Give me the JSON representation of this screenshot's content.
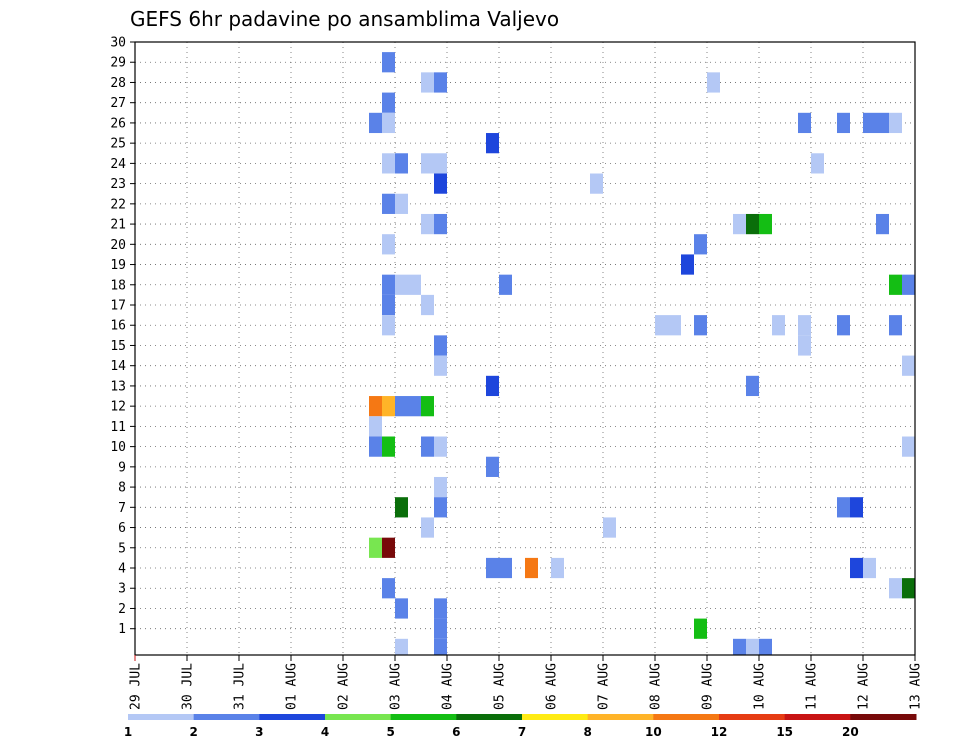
{
  "chart_data": {
    "type": "heatmap",
    "title": "GEFS 6hr padavine po ansamblima Valjevo",
    "x_tick_labels": [
      "29 JUL",
      "30 JUL",
      "31 JUL",
      "01 AUG",
      "02 AUG",
      "03 AUG",
      "04 AUG",
      "05 AUG",
      "06 AUG",
      "07 AUG",
      "08 AUG",
      "09 AUG",
      "10 AUG",
      "11 AUG",
      "12 AUG",
      "13 AUG"
    ],
    "y_tick_labels": [
      "1",
      "2",
      "3",
      "4",
      "5",
      "6",
      "7",
      "8",
      "9",
      "10",
      "11",
      "12",
      "13",
      "14",
      "15",
      "16",
      "17",
      "18",
      "19",
      "20",
      "21",
      "22",
      "23",
      "24",
      "25",
      "26",
      "27",
      "28",
      "29",
      "30"
    ],
    "x_range_days": [
      0,
      15
    ],
    "y_range": [
      0,
      30
    ],
    "x_unit": "days since 29 JUL 00Z",
    "grid": true,
    "legend": "bottom colorbar",
    "colorbar": {
      "labels": [
        "1",
        "2",
        "3",
        "4",
        "5",
        "6",
        "7",
        "8",
        "10",
        "12",
        "15",
        "20"
      ],
      "colors": [
        "#b4c8f5",
        "#5a82e8",
        "#1e46dc",
        "#78e650",
        "#14be14",
        "#0a6e0a",
        "#ffeb14",
        "#ffb428",
        "#f57814",
        "#e63c14",
        "#c81414",
        "#780a0a"
      ]
    },
    "cells": [
      {
        "t": 4.75,
        "m": 29,
        "v": 2
      },
      {
        "t": 5.5,
        "m": 28,
        "v": 1
      },
      {
        "t": 5.75,
        "m": 28,
        "v": 2
      },
      {
        "t": 11.0,
        "m": 28,
        "v": 1
      },
      {
        "t": 4.75,
        "m": 27,
        "v": 2
      },
      {
        "t": 4.5,
        "m": 26,
        "v": 2
      },
      {
        "t": 4.75,
        "m": 26,
        "v": 1
      },
      {
        "t": 12.75,
        "m": 26,
        "v": 2
      },
      {
        "t": 13.5,
        "m": 26,
        "v": 2
      },
      {
        "t": 14.0,
        "m": 26,
        "v": 2
      },
      {
        "t": 14.25,
        "m": 26,
        "v": 2
      },
      {
        "t": 14.5,
        "m": 26,
        "v": 1
      },
      {
        "t": 6.75,
        "m": 25,
        "v": 3
      },
      {
        "t": 4.75,
        "m": 24,
        "v": 1
      },
      {
        "t": 5.0,
        "m": 24,
        "v": 2
      },
      {
        "t": 5.5,
        "m": 24,
        "v": 1
      },
      {
        "t": 5.75,
        "m": 24,
        "v": 1
      },
      {
        "t": 13.0,
        "m": 24,
        "v": 1
      },
      {
        "t": 5.75,
        "m": 23,
        "v": 3
      },
      {
        "t": 8.75,
        "m": 23,
        "v": 1
      },
      {
        "t": 4.75,
        "m": 22,
        "v": 2
      },
      {
        "t": 5.0,
        "m": 22,
        "v": 1
      },
      {
        "t": 5.5,
        "m": 21,
        "v": 1
      },
      {
        "t": 5.75,
        "m": 21,
        "v": 2
      },
      {
        "t": 11.5,
        "m": 21,
        "v": 1
      },
      {
        "t": 11.75,
        "m": 21,
        "v": 6
      },
      {
        "t": 12.0,
        "m": 21,
        "v": 5
      },
      {
        "t": 14.25,
        "m": 21,
        "v": 2
      },
      {
        "t": 4.75,
        "m": 20,
        "v": 1
      },
      {
        "t": 10.75,
        "m": 20,
        "v": 2
      },
      {
        "t": 10.5,
        "m": 19,
        "v": 3
      },
      {
        "t": 4.75,
        "m": 18,
        "v": 2
      },
      {
        "t": 5.0,
        "m": 18,
        "v": 1
      },
      {
        "t": 5.25,
        "m": 18,
        "v": 1
      },
      {
        "t": 7.0,
        "m": 18,
        "v": 2
      },
      {
        "t": 14.5,
        "m": 18,
        "v": 5
      },
      {
        "t": 14.75,
        "m": 18,
        "v": 2
      },
      {
        "t": 4.75,
        "m": 17,
        "v": 2
      },
      {
        "t": 5.5,
        "m": 17,
        "v": 1
      },
      {
        "t": 4.75,
        "m": 16,
        "v": 1
      },
      {
        "t": 10.0,
        "m": 16,
        "v": 1
      },
      {
        "t": 10.25,
        "m": 16,
        "v": 1
      },
      {
        "t": 10.75,
        "m": 16,
        "v": 2
      },
      {
        "t": 12.25,
        "m": 16,
        "v": 1
      },
      {
        "t": 12.75,
        "m": 16,
        "v": 1
      },
      {
        "t": 13.5,
        "m": 16,
        "v": 2
      },
      {
        "t": 14.5,
        "m": 16,
        "v": 2
      },
      {
        "t": 5.75,
        "m": 15,
        "v": 2
      },
      {
        "t": 12.75,
        "m": 15,
        "v": 1
      },
      {
        "t": 5.75,
        "m": 14,
        "v": 1
      },
      {
        "t": 14.75,
        "m": 14,
        "v": 1
      },
      {
        "t": 6.75,
        "m": 13,
        "v": 3
      },
      {
        "t": 11.75,
        "m": 13,
        "v": 2
      },
      {
        "t": 4.5,
        "m": 12,
        "v": 10
      },
      {
        "t": 4.75,
        "m": 12,
        "v": 8
      },
      {
        "t": 5.0,
        "m": 12,
        "v": 2
      },
      {
        "t": 5.25,
        "m": 12,
        "v": 2
      },
      {
        "t": 5.5,
        "m": 12,
        "v": 5
      },
      {
        "t": 4.5,
        "m": 11,
        "v": 1
      },
      {
        "t": 4.5,
        "m": 10,
        "v": 2
      },
      {
        "t": 4.75,
        "m": 10,
        "v": 5
      },
      {
        "t": 5.5,
        "m": 10,
        "v": 2
      },
      {
        "t": 5.75,
        "m": 10,
        "v": 1
      },
      {
        "t": 14.75,
        "m": 10,
        "v": 1
      },
      {
        "t": 6.75,
        "m": 9,
        "v": 2
      },
      {
        "t": 5.75,
        "m": 8,
        "v": 1
      },
      {
        "t": 5.0,
        "m": 7,
        "v": 6
      },
      {
        "t": 5.75,
        "m": 7,
        "v": 2
      },
      {
        "t": 13.5,
        "m": 7,
        "v": 2
      },
      {
        "t": 13.75,
        "m": 7,
        "v": 3
      },
      {
        "t": 5.5,
        "m": 6,
        "v": 1
      },
      {
        "t": 9.0,
        "m": 6,
        "v": 1
      },
      {
        "t": 4.5,
        "m": 5,
        "v": 4
      },
      {
        "t": 4.75,
        "m": 5,
        "v": 20
      },
      {
        "t": 6.75,
        "m": 4,
        "v": 2
      },
      {
        "t": 7.0,
        "m": 4,
        "v": 2
      },
      {
        "t": 7.5,
        "m": 4,
        "v": 10
      },
      {
        "t": 8.0,
        "m": 4,
        "v": 1
      },
      {
        "t": 13.75,
        "m": 4,
        "v": 3
      },
      {
        "t": 14.0,
        "m": 4,
        "v": 1
      },
      {
        "t": 4.75,
        "m": 3,
        "v": 2
      },
      {
        "t": 14.5,
        "m": 3,
        "v": 1
      },
      {
        "t": 14.75,
        "m": 3,
        "v": 6
      },
      {
        "t": 5.0,
        "m": 2,
        "v": 2
      },
      {
        "t": 5.75,
        "m": 2,
        "v": 2
      },
      {
        "t": 5.75,
        "m": 1,
        "v": 2
      },
      {
        "t": 10.75,
        "m": 1,
        "v": 5
      },
      {
        "t": 5.0,
        "m": 0,
        "v": 1
      },
      {
        "t": 5.75,
        "m": 0,
        "v": 2
      },
      {
        "t": 11.5,
        "m": 0,
        "v": 2
      },
      {
        "t": 11.75,
        "m": 0,
        "v": 1
      },
      {
        "t": 12.0,
        "m": 0,
        "v": 2
      }
    ]
  }
}
